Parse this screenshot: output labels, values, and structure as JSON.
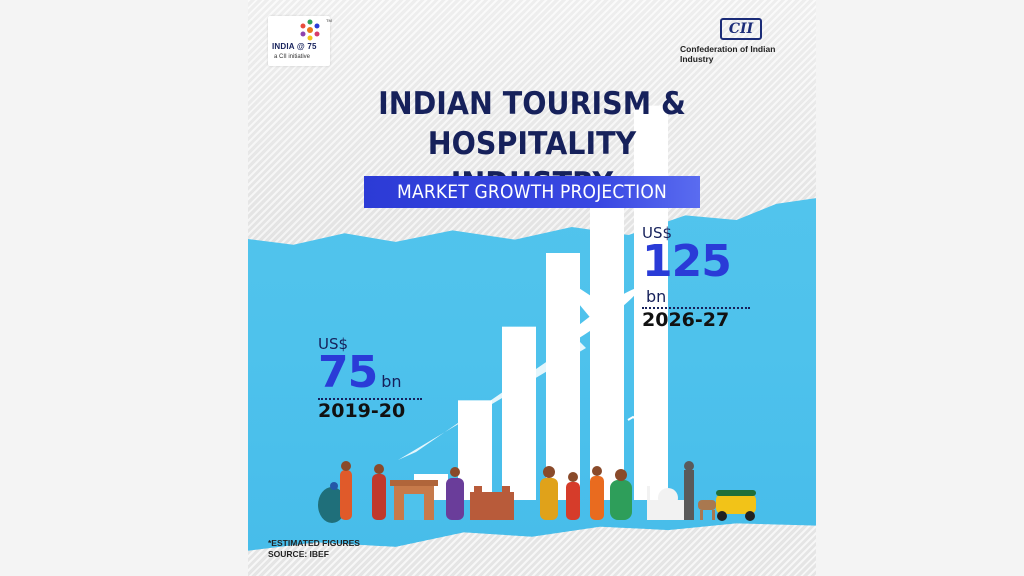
{
  "logo": {
    "main": "INDIA @ 75",
    "tagline": "a CII initiative",
    "tm": "TM"
  },
  "org": {
    "mark": "CII",
    "name": "Confederation of Indian Industry"
  },
  "title_line1": "INDIAN TOURISM &",
  "title_line2": "HOSPITALITY INDUSTRY",
  "subtitle": "MARKET GROWTH PROJECTION",
  "callouts": {
    "start": {
      "currency": "US$",
      "value": "75",
      "unit": "bn",
      "period": "2019-20"
    },
    "end": {
      "currency": "US$",
      "value": "125",
      "unit": "bn",
      "period": "2026-27"
    }
  },
  "footnote": {
    "line1": "*ESTIMATED FIGURES",
    "line2": "SOURCE: IBEF"
  },
  "colors": {
    "navy": "#16215b",
    "accent_blue": "#2a3bd7",
    "sky": "#4ec2ec",
    "bar_white": "#ffffff"
  },
  "icons": [
    "airplane-icon",
    "india-gate-icon",
    "taj-mahal-icon",
    "auto-rickshaw-icon",
    "peacock-icon",
    "dancer-icon"
  ],
  "chart_data": {
    "type": "bar",
    "categories": [
      "2019-20",
      "2026-27"
    ],
    "values": [
      75,
      125
    ],
    "unit": "US$ bn",
    "title": "MARKET GROWTH PROJECTION",
    "xlabel": "",
    "ylabel": "",
    "grid": false,
    "legend": "none",
    "decorative_bar_count": 6
  }
}
